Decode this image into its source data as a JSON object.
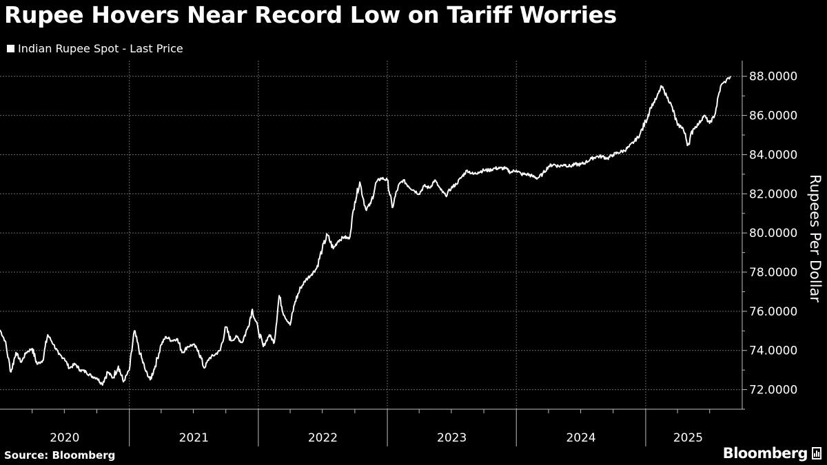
{
  "title": "Rupee Hovers Near Record Low on Tariff Worries",
  "source": "Source: Bloomberg",
  "brand": "Bloomberg",
  "colors": {
    "background": "#000000",
    "line": "#ffffff",
    "grid": "#6e6e6e",
    "axis": "#bfbfbf"
  },
  "chart_data": {
    "type": "line",
    "series": [
      {
        "name": "Indian Rupee Spot - Last Price",
        "points": [
          [
            "2020-01-01",
            75.05
          ],
          [
            "2020-01-15",
            74.5
          ],
          [
            "2020-02-01",
            72.9
          ],
          [
            "2020-02-15",
            73.9
          ],
          [
            "2020-03-01",
            73.4
          ],
          [
            "2020-03-15",
            73.9
          ],
          [
            "2020-04-01",
            74.1
          ],
          [
            "2020-04-15",
            73.3
          ],
          [
            "2020-05-01",
            73.5
          ],
          [
            "2020-05-15",
            74.8
          ],
          [
            "2020-06-01",
            74.3
          ],
          [
            "2020-06-15",
            73.8
          ],
          [
            "2020-07-01",
            73.6
          ],
          [
            "2020-07-15",
            73.1
          ],
          [
            "2020-08-01",
            73.3
          ],
          [
            "2020-08-15",
            73.0
          ],
          [
            "2020-09-01",
            72.9
          ],
          [
            "2020-09-15",
            72.7
          ],
          [
            "2020-10-01",
            72.6
          ],
          [
            "2020-10-15",
            72.3
          ],
          [
            "2020-11-01",
            72.9
          ],
          [
            "2020-11-15",
            72.6
          ],
          [
            "2020-12-01",
            73.2
          ],
          [
            "2020-12-15",
            72.4
          ],
          [
            "2021-01-01",
            73.0
          ],
          [
            "2021-01-15",
            75.0
          ],
          [
            "2021-02-01",
            73.8
          ],
          [
            "2021-02-15",
            73.0
          ],
          [
            "2021-03-01",
            72.5
          ],
          [
            "2021-03-15",
            73.2
          ],
          [
            "2021-04-01",
            74.3
          ],
          [
            "2021-04-15",
            74.7
          ],
          [
            "2021-05-01",
            74.5
          ],
          [
            "2021-05-15",
            74.6
          ],
          [
            "2021-06-01",
            73.9
          ],
          [
            "2021-06-15",
            74.2
          ],
          [
            "2021-07-01",
            74.3
          ],
          [
            "2021-07-15",
            74.0
          ],
          [
            "2021-08-01",
            73.1
          ],
          [
            "2021-08-15",
            73.6
          ],
          [
            "2021-09-01",
            73.8
          ],
          [
            "2021-09-15",
            74.0
          ],
          [
            "2021-10-01",
            75.2
          ],
          [
            "2021-10-15",
            74.5
          ],
          [
            "2021-11-01",
            74.7
          ],
          [
            "2021-11-15",
            74.4
          ],
          [
            "2021-12-01",
            75.1
          ],
          [
            "2021-12-15",
            76.1
          ],
          [
            "2022-01-01",
            75.0
          ],
          [
            "2022-01-15",
            74.2
          ],
          [
            "2022-02-01",
            74.8
          ],
          [
            "2022-02-15",
            74.4
          ],
          [
            "2022-03-01",
            76.8
          ],
          [
            "2022-03-15",
            75.8
          ],
          [
            "2022-04-01",
            75.3
          ],
          [
            "2022-04-15",
            76.5
          ],
          [
            "2022-05-01",
            77.2
          ],
          [
            "2022-05-15",
            77.6
          ],
          [
            "2022-06-01",
            77.9
          ],
          [
            "2022-06-15",
            78.2
          ],
          [
            "2022-07-01",
            79.2
          ],
          [
            "2022-07-15",
            79.9
          ],
          [
            "2022-08-01",
            79.2
          ],
          [
            "2022-08-15",
            79.6
          ],
          [
            "2022-09-01",
            79.8
          ],
          [
            "2022-09-15",
            79.7
          ],
          [
            "2022-10-01",
            81.6
          ],
          [
            "2022-10-15",
            82.6
          ],
          [
            "2022-11-01",
            81.2
          ],
          [
            "2022-11-15",
            81.5
          ],
          [
            "2022-12-01",
            82.6
          ],
          [
            "2022-12-15",
            82.8
          ],
          [
            "2023-01-01",
            82.7
          ],
          [
            "2023-01-15",
            81.3
          ],
          [
            "2023-02-01",
            82.4
          ],
          [
            "2023-02-15",
            82.7
          ],
          [
            "2023-03-01",
            82.4
          ],
          [
            "2023-03-15",
            82.2
          ],
          [
            "2023-04-01",
            82.0
          ],
          [
            "2023-04-15",
            82.4
          ],
          [
            "2023-05-01",
            82.3
          ],
          [
            "2023-05-15",
            82.7
          ],
          [
            "2023-06-01",
            82.2
          ],
          [
            "2023-06-15",
            81.9
          ],
          [
            "2023-07-01",
            82.3
          ],
          [
            "2023-07-15",
            82.5
          ],
          [
            "2023-08-01",
            82.9
          ],
          [
            "2023-08-15",
            83.2
          ],
          [
            "2023-09-01",
            83.0
          ],
          [
            "2023-09-15",
            83.1
          ],
          [
            "2023-10-01",
            83.2
          ],
          [
            "2023-10-15",
            83.2
          ],
          [
            "2023-11-01",
            83.3
          ],
          [
            "2023-11-15",
            83.3
          ],
          [
            "2023-12-01",
            83.3
          ],
          [
            "2023-12-15",
            83.1
          ],
          [
            "2024-01-01",
            83.2
          ],
          [
            "2024-01-15",
            83.0
          ],
          [
            "2024-02-01",
            83.0
          ],
          [
            "2024-02-15",
            82.9
          ],
          [
            "2024-03-01",
            82.8
          ],
          [
            "2024-03-15",
            83.0
          ],
          [
            "2024-04-01",
            83.4
          ],
          [
            "2024-04-15",
            83.5
          ],
          [
            "2024-05-01",
            83.4
          ],
          [
            "2024-05-15",
            83.5
          ],
          [
            "2024-06-01",
            83.4
          ],
          [
            "2024-06-15",
            83.5
          ],
          [
            "2024-07-01",
            83.5
          ],
          [
            "2024-07-15",
            83.6
          ],
          [
            "2024-08-01",
            83.8
          ],
          [
            "2024-08-15",
            83.9
          ],
          [
            "2024-09-01",
            83.9
          ],
          [
            "2024-09-15",
            83.8
          ],
          [
            "2024-10-01",
            84.0
          ],
          [
            "2024-10-15",
            84.1
          ],
          [
            "2024-11-01",
            84.2
          ],
          [
            "2024-11-15",
            84.4
          ],
          [
            "2024-12-01",
            84.7
          ],
          [
            "2024-12-15",
            85.0
          ],
          [
            "2025-01-01",
            85.7
          ],
          [
            "2025-01-15",
            86.4
          ],
          [
            "2025-02-01",
            86.9
          ],
          [
            "2025-02-15",
            87.5
          ],
          [
            "2025-03-01",
            87.0
          ],
          [
            "2025-03-15",
            86.5
          ],
          [
            "2025-04-01",
            85.5
          ],
          [
            "2025-04-15",
            85.4
          ],
          [
            "2025-05-01",
            84.5
          ],
          [
            "2025-05-15",
            85.3
          ],
          [
            "2025-06-01",
            85.6
          ],
          [
            "2025-06-15",
            86.0
          ],
          [
            "2025-07-01",
            85.6
          ],
          [
            "2025-07-15",
            86.0
          ],
          [
            "2025-08-01",
            87.5
          ],
          [
            "2025-08-29",
            88.0
          ]
        ]
      }
    ],
    "xlim": [
      "2020-01-01",
      "2025-08-29"
    ],
    "x_ticks": [
      "2020",
      "2021",
      "2022",
      "2023",
      "2024",
      "2025"
    ],
    "ylim": [
      71.0,
      88.8
    ],
    "y_ticks": [
      72,
      74,
      76,
      78,
      80,
      82,
      84,
      86,
      88
    ],
    "y_tick_labels": [
      "72.0000",
      "74.0000",
      "76.0000",
      "78.0000",
      "80.0000",
      "82.0000",
      "84.0000",
      "86.0000",
      "88.0000"
    ],
    "ylabel": "Rupees Per Dollar",
    "xlabel": "",
    "legend": "top-left",
    "grid": true,
    "y_axis_side": "right"
  }
}
